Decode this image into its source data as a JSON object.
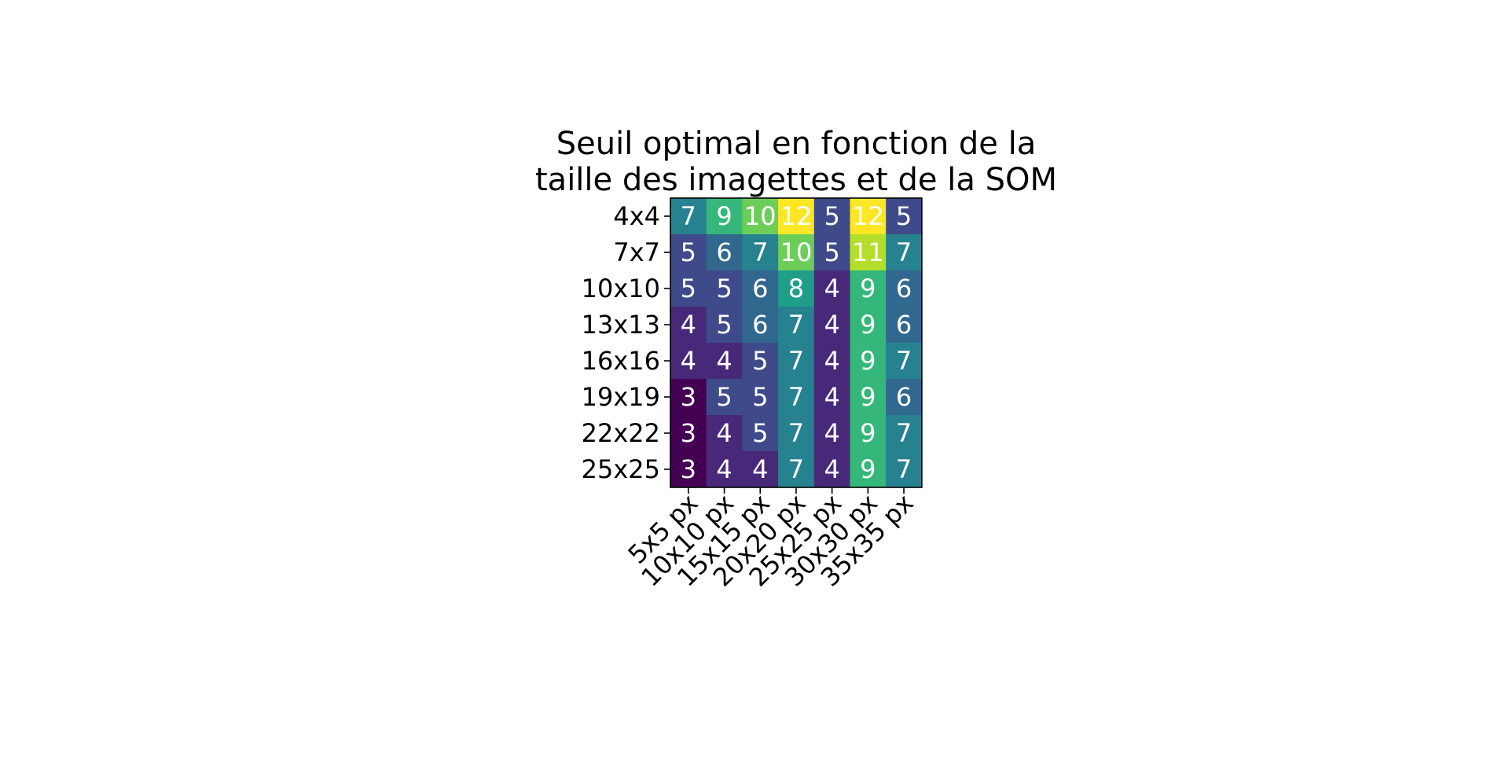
{
  "chart_data": {
    "type": "heatmap",
    "title": "Seuil optimal en fonction de la\ntaille des imagettes et de la SOM",
    "xlabel": "",
    "ylabel": "",
    "x_categories": [
      "5x5 px",
      "10x10 px",
      "15x15 px",
      "20x20 px",
      "25x25 px",
      "30x30 px",
      "35x35 px"
    ],
    "y_categories": [
      "4x4",
      "7x7",
      "10x10",
      "13x13",
      "16x16",
      "19x19",
      "22x22",
      "25x25"
    ],
    "values": [
      [
        7,
        9,
        10,
        12,
        5,
        12,
        5
      ],
      [
        5,
        6,
        7,
        10,
        5,
        11,
        7
      ],
      [
        5,
        5,
        6,
        8,
        4,
        9,
        6
      ],
      [
        4,
        5,
        6,
        7,
        4,
        9,
        6
      ],
      [
        4,
        4,
        5,
        7,
        4,
        9,
        7
      ],
      [
        3,
        5,
        5,
        7,
        4,
        9,
        6
      ],
      [
        3,
        4,
        5,
        7,
        4,
        9,
        7
      ],
      [
        3,
        4,
        4,
        7,
        4,
        9,
        7
      ]
    ],
    "colormap": "viridis",
    "value_range": [
      3,
      12
    ],
    "annotations": true,
    "grid": false,
    "colors": {
      "annotation_text": "#ffffff",
      "axis": "#000000"
    }
  }
}
